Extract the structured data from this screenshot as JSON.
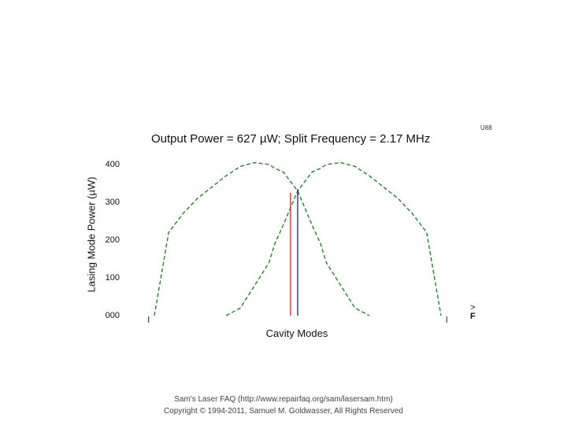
{
  "chart_data": {
    "type": "line",
    "title": "Output Power = 627 µW; Split Frequency = 2.17 MHz",
    "xlabel": "Cavity Modes",
    "ylabel": "Lasing Mode Power (µW)",
    "ylim": [
      0,
      420
    ],
    "yticks": [
      "000",
      "100",
      "200",
      "300",
      "400"
    ],
    "ytick_values": [
      0,
      100,
      200,
      300,
      400
    ],
    "xlim": [
      0,
      100
    ],
    "grid": false,
    "series": [
      {
        "color": "#2e7d32",
        "style": "dashed",
        "x": [
          0,
          5,
          10,
          15,
          20,
          25,
          30,
          35,
          40,
          42,
          45,
          50,
          55,
          58,
          60,
          65,
          70,
          75
        ],
        "y": [
          0,
          220,
          270,
          310,
          340,
          370,
          395,
          405,
          400,
          390,
          380,
          330,
          240,
          190,
          140,
          80,
          20,
          0
        ]
      },
      {
        "color": "#2e7d32",
        "style": "dashed",
        "x": [
          25,
          30,
          35,
          40,
          42,
          45,
          50,
          55,
          58,
          60,
          65,
          70,
          75,
          80,
          85,
          90,
          95,
          100
        ],
        "y": [
          0,
          20,
          80,
          140,
          190,
          240,
          330,
          380,
          390,
          400,
          405,
          395,
          370,
          340,
          310,
          270,
          220,
          0
        ]
      }
    ],
    "markers": [
      {
        "x": 47.5,
        "y": 325,
        "color": "#c62828"
      },
      {
        "x": 50.0,
        "y": 335,
        "color": "#1a237e"
      }
    ],
    "edge_ticks_x": [
      -2,
      102
    ]
  },
  "annotations": {
    "corner_mark": "U88",
    "freq_arrow": [
      ">",
      "F"
    ]
  },
  "footer": {
    "line1": "Sam's Laser FAQ (http://www.repairfaq.org/sam/lasersam.htm)",
    "line2": "Copyright © 1994-2011, Samuel M. Goldwasser, All Rights Reserved"
  },
  "colors": {
    "curve": "#2e7d32",
    "marker_red": "#c62828",
    "marker_blue": "#1a237e"
  }
}
